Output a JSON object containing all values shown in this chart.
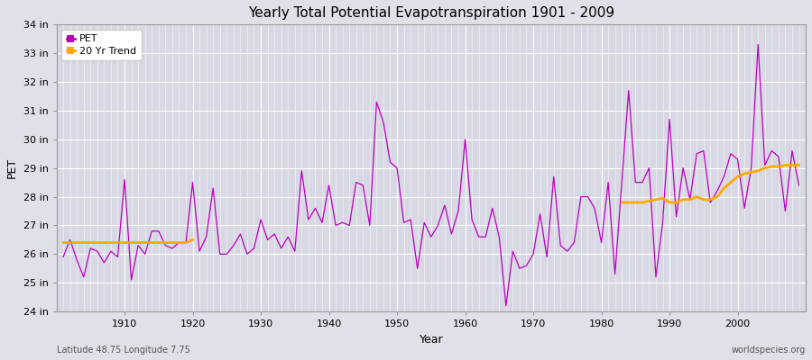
{
  "title": "Yearly Total Potential Evapotranspiration 1901 - 2009",
  "xlabel": "Year",
  "ylabel": "PET",
  "bottom_left": "Latitude 48.75 Longitude 7.75",
  "bottom_right": "worldspecies.org",
  "ylim": [
    24,
    34
  ],
  "xlim": [
    1900,
    2010
  ],
  "ytick_labels": [
    "24 in",
    "25 in",
    "26 in",
    "27 in",
    "28 in",
    "29 in",
    "30 in",
    "31 in",
    "32 in",
    "33 in",
    "34 in"
  ],
  "ytick_values": [
    24,
    25,
    26,
    27,
    28,
    29,
    30,
    31,
    32,
    33,
    34
  ],
  "pet_color": "#bb00bb",
  "trend_color": "#ffaa00",
  "fig_bg_color": "#e0e0e8",
  "plot_bg_color": "#d8d8e4",
  "years": [
    1901,
    1902,
    1903,
    1904,
    1905,
    1906,
    1907,
    1908,
    1909,
    1910,
    1911,
    1912,
    1913,
    1914,
    1915,
    1916,
    1917,
    1918,
    1919,
    1920,
    1921,
    1922,
    1923,
    1924,
    1925,
    1926,
    1927,
    1928,
    1929,
    1930,
    1931,
    1932,
    1933,
    1934,
    1935,
    1936,
    1937,
    1938,
    1939,
    1940,
    1941,
    1942,
    1943,
    1944,
    1945,
    1946,
    1947,
    1948,
    1949,
    1950,
    1951,
    1952,
    1953,
    1954,
    1955,
    1956,
    1957,
    1958,
    1959,
    1960,
    1961,
    1962,
    1963,
    1964,
    1965,
    1966,
    1967,
    1968,
    1969,
    1970,
    1971,
    1972,
    1973,
    1974,
    1975,
    1976,
    1977,
    1978,
    1979,
    1980,
    1981,
    1982,
    1983,
    1984,
    1985,
    1986,
    1987,
    1988,
    1989,
    1990,
    1991,
    1992,
    1993,
    1994,
    1995,
    1996,
    1997,
    1998,
    1999,
    2000,
    2001,
    2002,
    2003,
    2004,
    2005,
    2006,
    2007,
    2008,
    2009
  ],
  "pet_values": [
    25.9,
    26.5,
    25.8,
    25.2,
    26.2,
    26.1,
    25.7,
    26.1,
    25.9,
    28.6,
    25.1,
    26.3,
    26.0,
    26.8,
    26.8,
    26.3,
    26.2,
    26.4,
    26.4,
    28.5,
    26.1,
    26.6,
    28.3,
    26.0,
    26.0,
    26.3,
    26.7,
    26.0,
    26.2,
    27.2,
    26.5,
    26.7,
    26.2,
    26.6,
    26.1,
    28.9,
    27.2,
    27.6,
    27.1,
    28.4,
    27.0,
    27.1,
    27.0,
    28.5,
    28.4,
    27.0,
    31.3,
    30.6,
    29.2,
    29.0,
    27.1,
    27.2,
    25.5,
    27.1,
    26.6,
    27.0,
    27.7,
    26.7,
    27.5,
    30.0,
    27.2,
    26.6,
    26.6,
    27.6,
    26.6,
    24.2,
    26.1,
    25.5,
    25.6,
    26.0,
    27.4,
    25.9,
    28.7,
    26.3,
    26.1,
    26.4,
    28.0,
    28.0,
    27.6,
    26.4,
    28.5,
    25.3,
    28.5,
    31.7,
    28.5,
    28.5,
    29.0,
    25.2,
    27.1,
    30.7,
    27.3,
    29.0,
    27.9,
    29.5,
    29.6,
    27.8,
    28.2,
    28.7,
    29.5,
    29.3,
    27.6,
    29.0,
    33.3,
    29.1,
    29.6,
    29.4,
    27.5,
    29.6,
    28.4
  ],
  "trend_segment1_years": [
    1901,
    1902,
    1903,
    1904,
    1905,
    1906,
    1907,
    1908,
    1909,
    1910,
    1911,
    1912,
    1913,
    1914,
    1915,
    1916,
    1917,
    1918,
    1919,
    1920
  ],
  "trend_segment1_values": [
    26.4,
    26.4,
    26.4,
    26.4,
    26.4,
    26.4,
    26.4,
    26.4,
    26.4,
    26.4,
    26.4,
    26.4,
    26.4,
    26.4,
    26.4,
    26.4,
    26.4,
    26.4,
    26.4,
    26.5
  ],
  "trend_segment2_years": [
    1983,
    1984,
    1985,
    1986,
    1987,
    1988,
    1989,
    1990,
    1991,
    1992,
    1993,
    1994,
    1995,
    1996,
    1997,
    1998,
    1999,
    2000,
    2001,
    2002,
    2003,
    2004,
    2005,
    2006,
    2007,
    2008,
    2009
  ],
  "trend_segment2_values": [
    27.8,
    27.8,
    27.8,
    27.8,
    27.85,
    27.9,
    27.95,
    27.8,
    27.8,
    27.9,
    27.9,
    28.0,
    27.9,
    27.9,
    28.0,
    28.3,
    28.5,
    28.7,
    28.8,
    28.85,
    28.9,
    29.0,
    29.05,
    29.05,
    29.1,
    29.1,
    29.1
  ]
}
